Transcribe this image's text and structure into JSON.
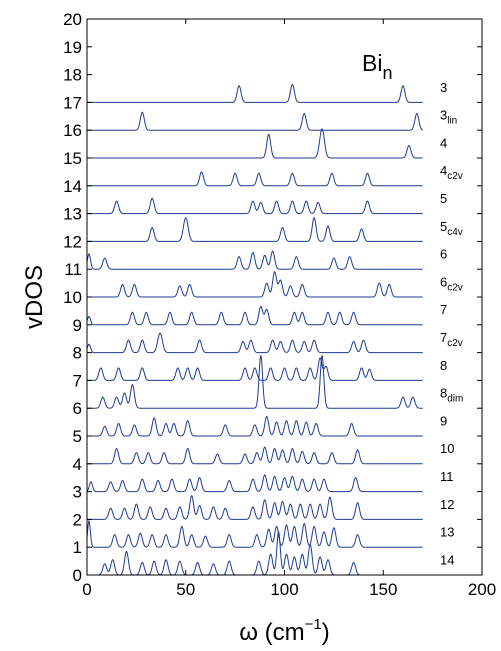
{
  "chart_data": {
    "type": "line",
    "title": "",
    "legend_title": {
      "main": "Bi",
      "sub": "n"
    },
    "xlabel": {
      "main": "ω (cm",
      "sup": "−1",
      "close": ")"
    },
    "ylabel": "vDOS",
    "xlim": [
      0,
      200
    ],
    "ylim": [
      0,
      20
    ],
    "xticks": [
      "0",
      "50",
      "100",
      "150",
      "200"
    ],
    "yticks": [
      "0",
      "1",
      "2",
      "3",
      "4",
      "5",
      "6",
      "7",
      "8",
      "9",
      "10",
      "11",
      "12",
      "13",
      "14",
      "15",
      "16",
      "17",
      "18",
      "19",
      "20"
    ],
    "line_color": "#1f3a93",
    "series": [
      {
        "name": "3",
        "sub": "",
        "baseline": 17,
        "peaks": [
          [
            77,
            0.6,
            1.0
          ],
          [
            104,
            0.65,
            1.0
          ],
          [
            160,
            0.6,
            1.0
          ]
        ]
      },
      {
        "name": "3",
        "sub": "lin",
        "baseline": 16,
        "peaks": [
          [
            28,
            0.65,
            1.0
          ],
          [
            110,
            0.6,
            1.0
          ],
          [
            167,
            0.6,
            1.0
          ]
        ]
      },
      {
        "name": "4",
        "sub": "",
        "baseline": 15,
        "peaks": [
          [
            92,
            0.85,
            1.0
          ],
          [
            119,
            1.05,
            1.2
          ],
          [
            163,
            0.45,
            1.0
          ]
        ]
      },
      {
        "name": "4",
        "sub": "c2v",
        "baseline": 14,
        "peaks": [
          [
            58,
            0.5,
            1.0
          ],
          [
            75,
            0.45,
            1.0
          ],
          [
            87,
            0.45,
            1.0
          ],
          [
            104,
            0.45,
            1.0
          ],
          [
            124,
            0.45,
            1.0
          ],
          [
            142,
            0.45,
            1.0
          ]
        ]
      },
      {
        "name": "5",
        "sub": "",
        "baseline": 13,
        "peaks": [
          [
            15,
            0.45,
            1.0
          ],
          [
            33,
            0.55,
            1.0
          ],
          [
            84,
            0.45,
            1.0
          ],
          [
            88,
            0.4,
            1.0
          ],
          [
            96,
            0.45,
            1.0
          ],
          [
            104,
            0.45,
            1.0
          ],
          [
            111,
            0.45,
            1.0
          ],
          [
            117,
            0.4,
            1.0
          ],
          [
            142,
            0.45,
            1.0
          ]
        ]
      },
      {
        "name": "5",
        "sub": "c4v",
        "baseline": 12,
        "peaks": [
          [
            33,
            0.5,
            1.0
          ],
          [
            50,
            0.85,
            1.2
          ],
          [
            99,
            0.5,
            1.0
          ],
          [
            115,
            0.85,
            1.0
          ],
          [
            122,
            0.55,
            1.0
          ],
          [
            139,
            0.45,
            1.0
          ]
        ]
      },
      {
        "name": "6",
        "sub": "",
        "baseline": 11,
        "peaks": [
          [
            1,
            0.55,
            0.8
          ],
          [
            9,
            0.4,
            1.0
          ],
          [
            77,
            0.45,
            1.0
          ],
          [
            84,
            0.6,
            1.0
          ],
          [
            90,
            0.5,
            1.0
          ],
          [
            94,
            0.65,
            1.0
          ],
          [
            106,
            0.45,
            1.0
          ],
          [
            125,
            0.4,
            1.0
          ],
          [
            133,
            0.45,
            1.0
          ]
        ]
      },
      {
        "name": "6",
        "sub": "c2v",
        "baseline": 10,
        "peaks": [
          [
            18,
            0.45,
            1.0
          ],
          [
            24,
            0.45,
            1.0
          ],
          [
            47,
            0.4,
            1.0
          ],
          [
            52,
            0.45,
            1.0
          ],
          [
            91,
            0.5,
            1.0
          ],
          [
            95,
            0.9,
            1.0
          ],
          [
            98,
            0.6,
            1.0
          ],
          [
            103,
            0.4,
            1.0
          ],
          [
            109,
            0.45,
            1.0
          ],
          [
            148,
            0.5,
            1.0
          ],
          [
            153,
            0.45,
            1.0
          ]
        ]
      },
      {
        "name": "7",
        "sub": "",
        "baseline": 9,
        "peaks": [
          [
            1,
            0.3,
            0.8
          ],
          [
            23,
            0.45,
            1.0
          ],
          [
            30,
            0.45,
            1.0
          ],
          [
            42,
            0.45,
            1.0
          ],
          [
            53,
            0.45,
            1.0
          ],
          [
            68,
            0.45,
            1.0
          ],
          [
            80,
            0.45,
            1.0
          ],
          [
            88,
            0.65,
            1.0
          ],
          [
            91,
            0.55,
            1.0
          ],
          [
            105,
            0.45,
            1.0
          ],
          [
            109,
            0.45,
            1.0
          ],
          [
            122,
            0.45,
            1.0
          ],
          [
            128,
            0.45,
            1.0
          ],
          [
            135,
            0.45,
            1.0
          ]
        ]
      },
      {
        "name": "7",
        "sub": "c2v",
        "baseline": 8,
        "peaks": [
          [
            1,
            0.3,
            0.8
          ],
          [
            21,
            0.45,
            1.0
          ],
          [
            28,
            0.45,
            1.0
          ],
          [
            37,
            0.7,
            1.2
          ],
          [
            57,
            0.45,
            1.0
          ],
          [
            79,
            0.4,
            1.0
          ],
          [
            83,
            0.45,
            1.0
          ],
          [
            94,
            0.45,
            1.0
          ],
          [
            98,
            0.4,
            1.0
          ],
          [
            104,
            0.45,
            1.0
          ],
          [
            110,
            0.4,
            1.0
          ],
          [
            115,
            0.45,
            1.0
          ],
          [
            135,
            0.4,
            1.0
          ],
          [
            140,
            0.45,
            1.0
          ]
        ]
      },
      {
        "name": "8",
        "sub": "",
        "baseline": 7,
        "peaks": [
          [
            7,
            0.45,
            1.0
          ],
          [
            16,
            0.45,
            1.0
          ],
          [
            28,
            0.45,
            1.0
          ],
          [
            46,
            0.45,
            1.0
          ],
          [
            51,
            0.45,
            1.0
          ],
          [
            56,
            0.45,
            1.0
          ],
          [
            80,
            0.45,
            1.0
          ],
          [
            85,
            0.45,
            1.0
          ],
          [
            93,
            0.45,
            1.0
          ],
          [
            100,
            0.45,
            1.0
          ],
          [
            106,
            0.45,
            1.0
          ],
          [
            113,
            0.45,
            1.0
          ],
          [
            118,
            0.8,
            1.0
          ],
          [
            121,
            0.5,
            1.0
          ],
          [
            139,
            0.45,
            1.0
          ],
          [
            143,
            0.4,
            1.0
          ]
        ]
      },
      {
        "name": "8",
        "sub": "dim",
        "baseline": 6,
        "peaks": [
          [
            8,
            0.4,
            1.0
          ],
          [
            15,
            0.4,
            1.0
          ],
          [
            19,
            0.55,
            1.0
          ],
          [
            23,
            0.85,
            1.0
          ],
          [
            88,
            1.9,
            0.9
          ],
          [
            119,
            1.9,
            0.9
          ],
          [
            160,
            0.4,
            1.0
          ],
          [
            165,
            0.4,
            1.0
          ]
        ]
      },
      {
        "name": "9",
        "sub": "",
        "baseline": 5,
        "peaks": [
          [
            9,
            0.35,
            1.0
          ],
          [
            16,
            0.45,
            1.0
          ],
          [
            24,
            0.4,
            1.0
          ],
          [
            34,
            0.65,
            1.0
          ],
          [
            40,
            0.45,
            1.0
          ],
          [
            44,
            0.45,
            1.0
          ],
          [
            51,
            0.55,
            1.0
          ],
          [
            70,
            0.4,
            1.0
          ],
          [
            85,
            0.4,
            1.0
          ],
          [
            91,
            0.7,
            1.0
          ],
          [
            96,
            0.5,
            1.0
          ],
          [
            101,
            0.55,
            1.0
          ],
          [
            106,
            0.55,
            1.0
          ],
          [
            111,
            0.5,
            1.0
          ],
          [
            116,
            0.45,
            1.0
          ],
          [
            134,
            0.45,
            1.0
          ]
        ]
      },
      {
        "name": "10",
        "sub": "",
        "baseline": 4,
        "peaks": [
          [
            15,
            0.55,
            1.0
          ],
          [
            25,
            0.4,
            1.0
          ],
          [
            31,
            0.4,
            1.0
          ],
          [
            39,
            0.4,
            1.0
          ],
          [
            51,
            0.55,
            1.0
          ],
          [
            66,
            0.35,
            1.0
          ],
          [
            80,
            0.35,
            1.0
          ],
          [
            86,
            0.4,
            1.0
          ],
          [
            90,
            0.6,
            1.0
          ],
          [
            95,
            0.55,
            1.0
          ],
          [
            99,
            0.5,
            1.0
          ],
          [
            104,
            0.55,
            1.0
          ],
          [
            109,
            0.45,
            1.0
          ],
          [
            115,
            0.4,
            1.0
          ],
          [
            124,
            0.4,
            1.0
          ],
          [
            137,
            0.5,
            1.0
          ]
        ]
      },
      {
        "name": "11",
        "sub": "",
        "baseline": 3,
        "peaks": [
          [
            2,
            0.35,
            0.8
          ],
          [
            12,
            0.35,
            1.0
          ],
          [
            18,
            0.4,
            1.0
          ],
          [
            28,
            0.45,
            1.0
          ],
          [
            36,
            0.4,
            1.0
          ],
          [
            43,
            0.45,
            1.0
          ],
          [
            52,
            0.45,
            1.0
          ],
          [
            57,
            0.5,
            1.0
          ],
          [
            72,
            0.4,
            1.0
          ],
          [
            84,
            0.45,
            1.0
          ],
          [
            90,
            0.6,
            1.0
          ],
          [
            95,
            0.55,
            1.0
          ],
          [
            100,
            0.5,
            1.0
          ],
          [
            104,
            0.55,
            1.0
          ],
          [
            109,
            0.45,
            1.0
          ],
          [
            115,
            0.45,
            1.0
          ],
          [
            120,
            0.45,
            1.0
          ],
          [
            136,
            0.5,
            1.0
          ]
        ]
      },
      {
        "name": "12",
        "sub": "",
        "baseline": 2,
        "peaks": [
          [
            12,
            0.4,
            1.0
          ],
          [
            19,
            0.4,
            1.0
          ],
          [
            25,
            0.55,
            1.0
          ],
          [
            32,
            0.45,
            1.0
          ],
          [
            40,
            0.4,
            1.0
          ],
          [
            47,
            0.45,
            1.0
          ],
          [
            53,
            0.85,
            1.0
          ],
          [
            57,
            0.5,
            1.0
          ],
          [
            64,
            0.45,
            1.0
          ],
          [
            70,
            0.4,
            1.0
          ],
          [
            84,
            0.45,
            1.0
          ],
          [
            90,
            0.7,
            1.0
          ],
          [
            95,
            0.6,
            1.0
          ],
          [
            99,
            0.65,
            1.0
          ],
          [
            103,
            0.55,
            1.0
          ],
          [
            108,
            0.55,
            1.0
          ],
          [
            113,
            0.55,
            1.0
          ],
          [
            118,
            0.55,
            1.0
          ],
          [
            123,
            0.8,
            1.0
          ],
          [
            137,
            0.6,
            1.0
          ]
        ]
      },
      {
        "name": "13",
        "sub": "",
        "baseline": 1,
        "peaks": [
          [
            1,
            0.95,
            0.7
          ],
          [
            14,
            0.45,
            1.0
          ],
          [
            21,
            0.45,
            1.0
          ],
          [
            27,
            0.5,
            1.0
          ],
          [
            33,
            0.45,
            1.0
          ],
          [
            40,
            0.45,
            1.0
          ],
          [
            48,
            0.75,
            1.0
          ],
          [
            53,
            0.45,
            1.0
          ],
          [
            60,
            0.4,
            1.0
          ],
          [
            72,
            0.45,
            1.0
          ],
          [
            86,
            0.45,
            1.0
          ],
          [
            92,
            0.65,
            1.0
          ],
          [
            96,
            0.75,
            1.0
          ],
          [
            101,
            0.8,
            1.0
          ],
          [
            105,
            0.75,
            1.0
          ],
          [
            110,
            0.85,
            1.0
          ],
          [
            115,
            0.75,
            1.0
          ],
          [
            120,
            0.55,
            1.0
          ],
          [
            125,
            0.7,
            1.0
          ],
          [
            137,
            0.45,
            1.0
          ]
        ]
      },
      {
        "name": "14",
        "sub": "",
        "baseline": 0,
        "peaks": [
          [
            9,
            0.4,
            1.0
          ],
          [
            13,
            0.55,
            1.0
          ],
          [
            20,
            0.85,
            1.0
          ],
          [
            28,
            0.45,
            1.0
          ],
          [
            34,
            0.5,
            1.0
          ],
          [
            40,
            0.55,
            1.0
          ],
          [
            47,
            0.5,
            1.0
          ],
          [
            56,
            0.45,
            1.0
          ],
          [
            64,
            0.4,
            1.0
          ],
          [
            72,
            0.5,
            1.0
          ],
          [
            87,
            0.5,
            1.0
          ],
          [
            93,
            0.75,
            1.0
          ],
          [
            97,
            1.55,
            0.9
          ],
          [
            101,
            0.75,
            1.0
          ],
          [
            105,
            0.65,
            1.0
          ],
          [
            109,
            0.75,
            1.0
          ],
          [
            113,
            1.1,
            1.0
          ],
          [
            118,
            0.65,
            1.0
          ],
          [
            122,
            0.55,
            1.0
          ],
          [
            135,
            0.45,
            1.0
          ]
        ]
      }
    ]
  }
}
